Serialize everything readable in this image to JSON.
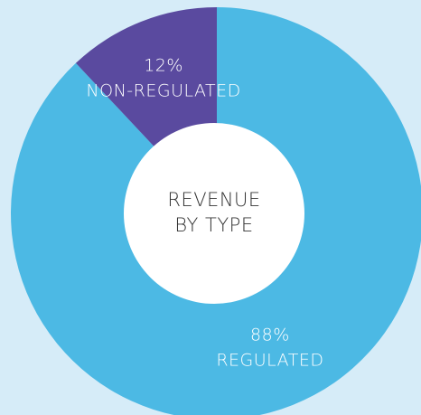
{
  "chart_data": {
    "type": "pie",
    "title": [
      "REVENUE",
      "BY TYPE"
    ],
    "categories": [
      "REGULATED",
      "NON-REGULATED"
    ],
    "values": [
      88,
      12
    ],
    "value_labels": [
      "88%",
      "12%"
    ],
    "colors": [
      "#4cb9e4",
      "#5a4a9f"
    ],
    "donut": true
  }
}
